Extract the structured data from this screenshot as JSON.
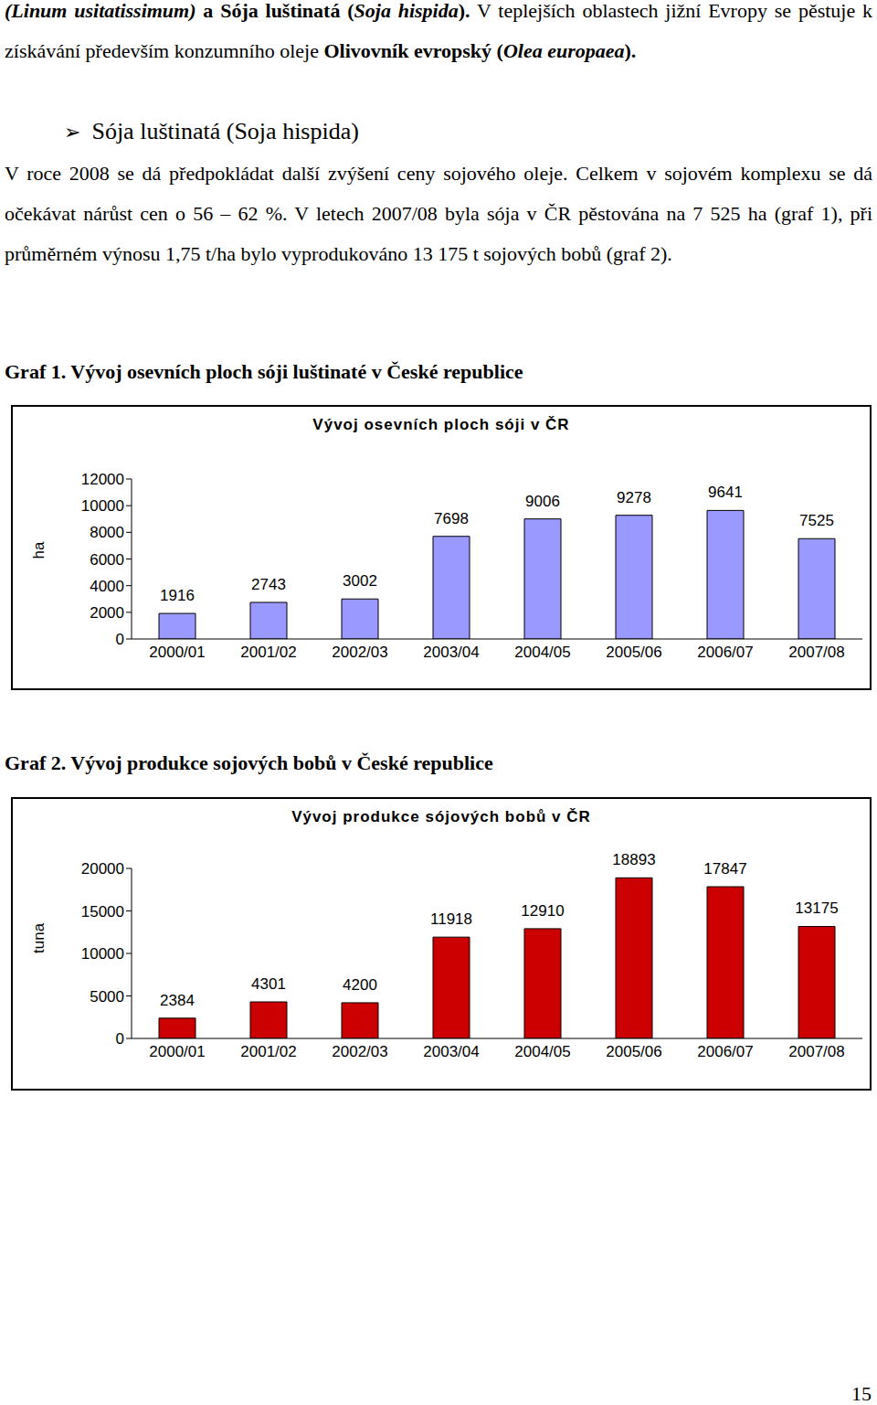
{
  "page": {
    "paragraph1": [
      {
        "t": "(Linum usitatissimum)",
        "b": true,
        "i": true
      },
      {
        "t": " a Sója luštinatá (",
        "b": true,
        "i": false
      },
      {
        "t": "Soja hispida",
        "b": true,
        "i": true
      },
      {
        "t": ").",
        "b": true,
        "i": false
      },
      {
        "t": " V teplejších oblastech jižní Evropy se pěstuje k získávání především konzumního oleje ",
        "b": false,
        "i": false
      },
      {
        "t": "Olivovník evropský (",
        "b": true,
        "i": false
      },
      {
        "t": "Olea europaea",
        "b": true,
        "i": true
      },
      {
        "t": ").",
        "b": true,
        "i": false
      }
    ],
    "bullet": "➢",
    "heading": "Sója luštinatá (Soja hispida)",
    "paragraph2": "V roce 2008 se dá předpokládat další zvýšení ceny sojového oleje. Celkem v sojovém komplexu se dá očekávat nárůst cen o 56 – 62 %. V letech 2007/08 byla sója v ČR pěstována na 7 525 ha (graf 1), při průměrném výnosu 1,75 t/ha bylo vyprodukováno 13 175 t sojových bobů (graf 2).",
    "captions": [
      "Graf 1. Vývoj osevních ploch sóji luštinaté v České republice",
      "Graf 2. Vývoj produkce sojových bobů v České republice"
    ],
    "page_number": "15"
  },
  "chart_data": [
    {
      "type": "bar",
      "title": "Vývoj osevních ploch sóji v ČR",
      "y_label": "ha",
      "categories": [
        "2000/01",
        "2001/02",
        "2002/03",
        "2003/04",
        "2004/05",
        "2005/06",
        "2006/07",
        "2007/08"
      ],
      "values": [
        1916,
        2743,
        3002,
        7698,
        9006,
        9278,
        9641,
        7525
      ],
      "color": "#9999ff",
      "ylim": [
        0,
        12000
      ],
      "yticks": [
        0,
        2000,
        4000,
        6000,
        8000,
        10000,
        12000
      ],
      "data_labels": true,
      "grid": false
    },
    {
      "type": "bar",
      "title": "Vývoj produkce sójových bobů v ČR",
      "y_label": "tuna",
      "categories": [
        "2000/01",
        "2001/02",
        "2002/03",
        "2003/04",
        "2004/05",
        "2005/06",
        "2006/07",
        "2007/08"
      ],
      "values": [
        2384,
        4301,
        4200,
        11918,
        12910,
        18893,
        17847,
        13175
      ],
      "color": "#cc0000",
      "ylim": [
        0,
        20000
      ],
      "yticks": [
        0,
        5000,
        10000,
        15000,
        20000
      ],
      "data_labels": true,
      "grid": false
    }
  ]
}
